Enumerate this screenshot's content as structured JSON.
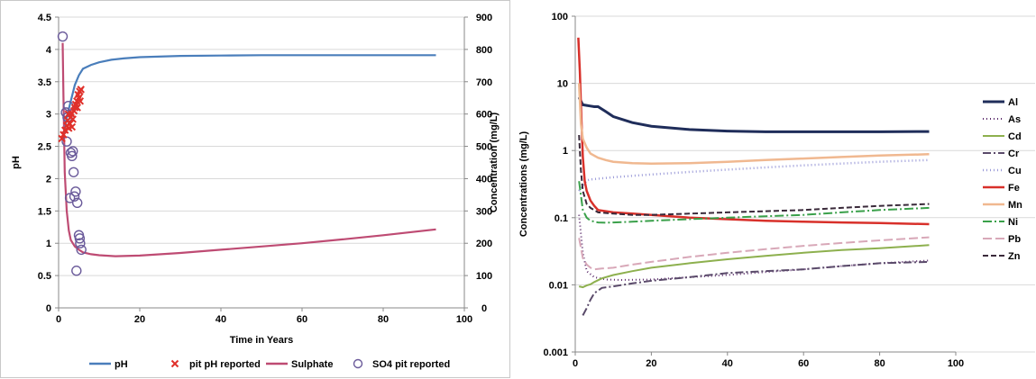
{
  "chart_data": [
    {
      "type": "line",
      "xlabel": "Time in Years",
      "ylabel": "pH",
      "y2label": "Concentration (mg/L)",
      "xlim": [
        0,
        100
      ],
      "ylim": [
        0,
        4.5
      ],
      "y2lim": [
        0,
        900
      ],
      "x_ticks": [
        "0",
        "20",
        "40",
        "60",
        "80",
        "100"
      ],
      "y_ticks": [
        "0",
        "0.5",
        "1",
        "1.5",
        "2",
        "2.5",
        "3",
        "3.5",
        "4",
        "4.5"
      ],
      "y2_ticks": [
        "0",
        "100",
        "200",
        "300",
        "400",
        "500",
        "600",
        "700",
        "800",
        "900"
      ],
      "grid": "horizontal",
      "legend_position": "bottom",
      "colors": {
        "ph": "#4a7ebb",
        "pit_ph": "#e0302a",
        "sulphate": "#be4b73",
        "so4_pit": "#6a5a9a"
      },
      "series": [
        {
          "name": "pH",
          "axis": "left",
          "style": "line",
          "x": [
            1,
            1.5,
            2,
            3,
            4,
            5,
            6,
            8,
            10,
            13,
            16,
            20,
            30,
            40,
            50,
            60,
            70,
            80,
            90,
            93
          ],
          "y": [
            2.6,
            2.75,
            2.95,
            3.2,
            3.45,
            3.6,
            3.7,
            3.76,
            3.8,
            3.84,
            3.86,
            3.88,
            3.9,
            3.905,
            3.91,
            3.91,
            3.91,
            3.91,
            3.91,
            3.91
          ]
        },
        {
          "name": "pit pH reported",
          "axis": "left",
          "style": "marker-x",
          "x": [
            0.8,
            1.2,
            1.6,
            2.0,
            2.2,
            2.5,
            2.8,
            3.0,
            3.2,
            3.5,
            3.8,
            4.0,
            4.2,
            4.5,
            4.8,
            5.0,
            5.2,
            5.5,
            2.4,
            3.3,
            4.6,
            5.3
          ],
          "y": [
            2.62,
            2.68,
            2.75,
            2.82,
            2.9,
            2.78,
            2.85,
            2.95,
            3.0,
            2.92,
            3.05,
            3.1,
            3.15,
            3.2,
            3.3,
            3.25,
            3.35,
            3.38,
            3.0,
            2.8,
            3.1,
            3.2
          ]
        },
        {
          "name": "Sulphate",
          "axis": "right",
          "style": "line",
          "x": [
            1,
            1.2,
            1.5,
            2,
            2.5,
            3,
            4,
            5,
            6,
            8,
            10,
            14,
            20,
            30,
            40,
            50,
            60,
            70,
            80,
            93
          ],
          "y": [
            820,
            650,
            420,
            300,
            240,
            210,
            190,
            180,
            172,
            166,
            163,
            160,
            162,
            170,
            180,
            190,
            200,
            212,
            225,
            243
          ]
        },
        {
          "name": "SO4 pit reported",
          "axis": "right",
          "style": "marker-o",
          "x": [
            1.0,
            1.8,
            2.2,
            3.0,
            3.5,
            3.7,
            3.9,
            4.2,
            4.6,
            5.0,
            5.2,
            5.3,
            5.6,
            2.4,
            2.8,
            3.3,
            4.4,
            2.0
          ],
          "y": [
            840,
            605,
            590,
            480,
            485,
            420,
            345,
            360,
            325,
            225,
            215,
            200,
            180,
            625,
            340,
            470,
            115,
            515
          ]
        }
      ]
    },
    {
      "type": "line",
      "xlabel": "",
      "ylabel": "Concentrations (mg/L)",
      "yscale": "log",
      "xlim": [
        0,
        100
      ],
      "ylim": [
        0.001,
        100
      ],
      "x_ticks": [
        "0",
        "20",
        "40",
        "60",
        "80",
        "100"
      ],
      "y_ticks": [
        "0.001",
        "0.01",
        "0.1",
        "1",
        "10",
        "100"
      ],
      "grid": "horizontal",
      "legend_position": "right",
      "series": [
        {
          "name": "Al",
          "color": "#1f2d5a",
          "dash": "solid",
          "width": 3,
          "x": [
            1,
            2,
            3,
            4,
            5,
            6,
            8,
            10,
            15,
            20,
            30,
            40,
            50,
            60,
            70,
            80,
            93
          ],
          "y": [
            6.2,
            4.8,
            4.7,
            4.6,
            4.5,
            4.5,
            3.8,
            3.2,
            2.6,
            2.3,
            2.05,
            1.95,
            1.9,
            1.9,
            1.9,
            1.9,
            1.92
          ]
        },
        {
          "name": "As",
          "color": "#5a2a6a",
          "dash": "1,3",
          "width": 2,
          "x": [
            1,
            2,
            3,
            5,
            8,
            12,
            20,
            30,
            40,
            50,
            60,
            70,
            80,
            93
          ],
          "y": [
            0.11,
            0.03,
            0.016,
            0.013,
            0.012,
            0.0118,
            0.012,
            0.013,
            0.014,
            0.0155,
            0.017,
            0.019,
            0.021,
            0.023
          ]
        },
        {
          "name": "Cd",
          "color": "#8db04e",
          "dash": "solid",
          "width": 2,
          "x": [
            1,
            2,
            3,
            4,
            5,
            7,
            10,
            15,
            20,
            30,
            40,
            50,
            60,
            70,
            80,
            93
          ],
          "y": [
            0.0095,
            0.0092,
            0.0098,
            0.0102,
            0.011,
            0.0125,
            0.014,
            0.016,
            0.018,
            0.021,
            0.024,
            0.027,
            0.03,
            0.033,
            0.035,
            0.039
          ]
        },
        {
          "name": "Cr",
          "color": "#5a4a6a",
          "dash": "9,3,2,3",
          "width": 2,
          "x": [
            2,
            3,
            4,
            5,
            7,
            10,
            15,
            20,
            30,
            40,
            50,
            60,
            70,
            80,
            93
          ],
          "y": [
            0.0035,
            0.0045,
            0.006,
            0.0075,
            0.009,
            0.0095,
            0.0105,
            0.0115,
            0.013,
            0.015,
            0.016,
            0.017,
            0.019,
            0.021,
            0.022
          ]
        },
        {
          "name": "Cu",
          "color": "#9a9ad8",
          "dash": "1,3",
          "width": 2.5,
          "x": [
            1,
            2,
            3,
            4,
            6,
            10,
            15,
            20,
            30,
            40,
            50,
            60,
            70,
            80,
            93
          ],
          "y": [
            0.25,
            0.3,
            0.36,
            0.37,
            0.38,
            0.4,
            0.42,
            0.44,
            0.48,
            0.52,
            0.56,
            0.6,
            0.64,
            0.68,
            0.72
          ]
        },
        {
          "name": "Fe",
          "color": "#d8302a",
          "dash": "solid",
          "width": 2.5,
          "x": [
            0.8,
            1.2,
            1.6,
            2,
            2.5,
            3,
            4,
            5,
            6,
            8,
            10,
            15,
            20,
            30,
            40,
            50,
            60,
            70,
            80,
            93
          ],
          "y": [
            48,
            15,
            3,
            0.8,
            0.35,
            0.25,
            0.18,
            0.15,
            0.13,
            0.125,
            0.12,
            0.115,
            0.11,
            0.1,
            0.095,
            0.09,
            0.087,
            0.085,
            0.083,
            0.08
          ]
        },
        {
          "name": "Mn",
          "color": "#f0b890",
          "dash": "solid",
          "width": 2.5,
          "x": [
            1,
            1.5,
            2,
            3,
            4,
            6,
            8,
            10,
            15,
            20,
            30,
            40,
            50,
            60,
            70,
            80,
            93
          ],
          "y": [
            10,
            2.5,
            1.5,
            1.1,
            0.9,
            0.78,
            0.72,
            0.68,
            0.65,
            0.64,
            0.65,
            0.68,
            0.72,
            0.76,
            0.8,
            0.84,
            0.88
          ]
        },
        {
          "name": "Ni",
          "color": "#3aa04a",
          "dash": "10,3,2,3",
          "width": 2,
          "x": [
            1,
            2,
            3,
            4,
            6,
            8,
            10,
            15,
            20,
            30,
            40,
            50,
            60,
            70,
            80,
            93
          ],
          "y": [
            0.35,
            0.13,
            0.1,
            0.09,
            0.085,
            0.084,
            0.085,
            0.087,
            0.09,
            0.095,
            0.1,
            0.105,
            0.11,
            0.12,
            0.13,
            0.14
          ]
        },
        {
          "name": "Pb",
          "color": "#d8a8b8",
          "dash": "10,4",
          "width": 2,
          "x": [
            1,
            2,
            3,
            4,
            5,
            7,
            10,
            15,
            20,
            30,
            40,
            50,
            60,
            70,
            80,
            93
          ],
          "y": [
            0.05,
            0.025,
            0.02,
            0.018,
            0.017,
            0.0175,
            0.018,
            0.02,
            0.022,
            0.026,
            0.03,
            0.034,
            0.038,
            0.042,
            0.046,
            0.051
          ]
        },
        {
          "name": "Zn",
          "color": "#3a2a3a",
          "dash": "6,3",
          "width": 2,
          "x": [
            1,
            1.5,
            2,
            3,
            4,
            6,
            10,
            15,
            20,
            30,
            40,
            50,
            60,
            70,
            80,
            93
          ],
          "y": [
            1.7,
            0.5,
            0.25,
            0.16,
            0.14,
            0.12,
            0.115,
            0.11,
            0.11,
            0.115,
            0.12,
            0.125,
            0.13,
            0.14,
            0.15,
            0.16
          ]
        }
      ]
    }
  ]
}
